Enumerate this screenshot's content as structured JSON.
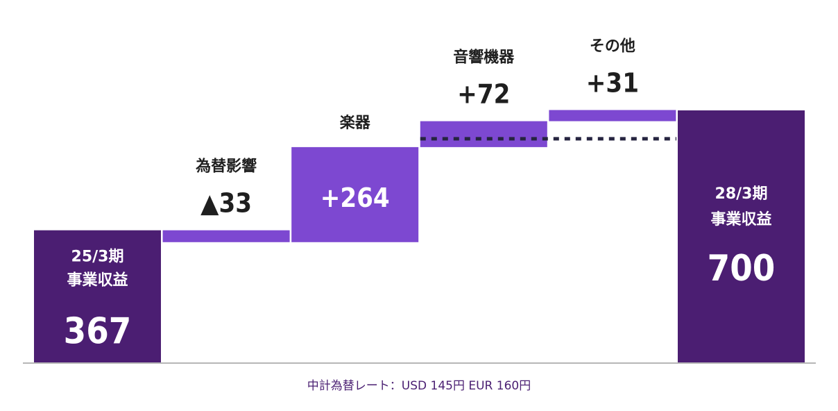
{
  "chart_data": {
    "type": "waterfall",
    "unit_note": "中計為替レート：USD 145円 EUR 160円",
    "colors": {
      "total": "#4b1e72",
      "change": "#7d48d1",
      "dotted_line": "#262440",
      "axis": "#b6b6b6",
      "dark_text": "#1f1f1f",
      "white_text": "#ffffff"
    },
    "ylim": [
      0,
      700
    ],
    "steps": [
      {
        "kind": "total",
        "period": "25/3期",
        "name": "事業収益",
        "value": 367,
        "value_label": "367"
      },
      {
        "kind": "change",
        "name": "為替影響",
        "value": -33,
        "value_label": "▲33"
      },
      {
        "kind": "change",
        "name": "楽器",
        "value": 264,
        "value_label": "+264"
      },
      {
        "kind": "change",
        "name": "音響機器",
        "value": 72,
        "value_label": "+72"
      },
      {
        "kind": "change",
        "name": "その他",
        "value": 31,
        "value_label": "+31"
      },
      {
        "kind": "total",
        "period": "28/3期",
        "name": "事業収益",
        "value": 700,
        "value_label": "700"
      }
    ],
    "dotted_reference": {
      "from_step": 3,
      "to_step": 5
    }
  }
}
